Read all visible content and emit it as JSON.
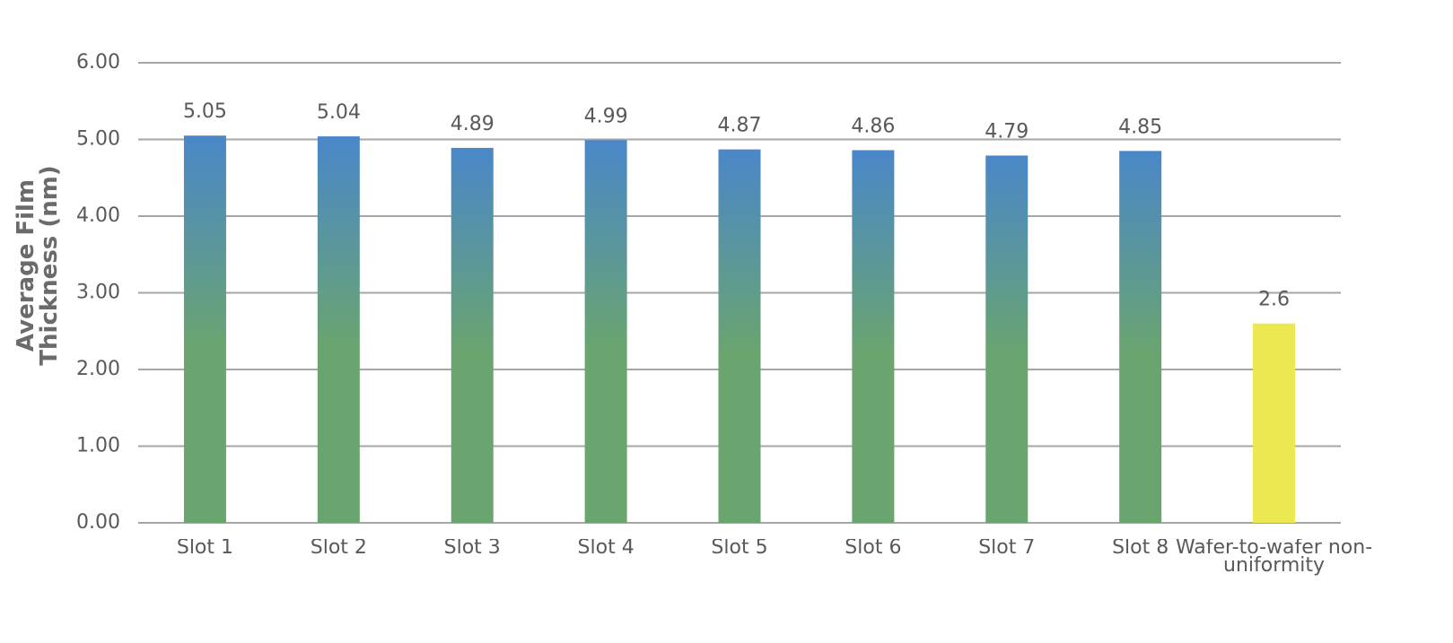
{
  "chart_data": {
    "type": "bar",
    "y_label": "Average Film Thickness (nm)",
    "categories": [
      "Slot 1",
      "Slot 2",
      "Slot 3",
      "Slot 4",
      "Slot 5",
      "Slot 6",
      "Slot 7",
      "Slot 8",
      "Wafer-to-wafer non-uniformity"
    ],
    "values": [
      5.05,
      5.04,
      4.89,
      4.99,
      4.87,
      4.86,
      4.79,
      4.85,
      2.6
    ],
    "colors": [
      [
        "#4a87c9",
        "#6aa56f"
      ],
      [
        "#4a87c9",
        "#6aa56f"
      ],
      [
        "#4a87c9",
        "#6aa56f"
      ],
      [
        "#4a87c9",
        "#6aa56f"
      ],
      [
        "#4a87c9",
        "#6aa56f"
      ],
      [
        "#4a87c9",
        "#6aa56f"
      ],
      [
        "#4a87c9",
        "#6aa56f"
      ],
      [
        "#4a87c9",
        "#6aa56f"
      ],
      [
        "#ece852",
        "#ece852"
      ]
    ],
    "ylim": [
      0,
      6
    ],
    "yticks": [
      {
        "value": 0,
        "label": "0.00"
      },
      {
        "value": 1,
        "label": "1.00"
      },
      {
        "value": 2,
        "label": "2.00"
      },
      {
        "value": 3,
        "label": "3.00"
      },
      {
        "value": 4,
        "label": "4.00"
      },
      {
        "value": 5,
        "label": "5.00"
      },
      {
        "value": 6,
        "label": "6.00"
      }
    ],
    "grid": true
  }
}
